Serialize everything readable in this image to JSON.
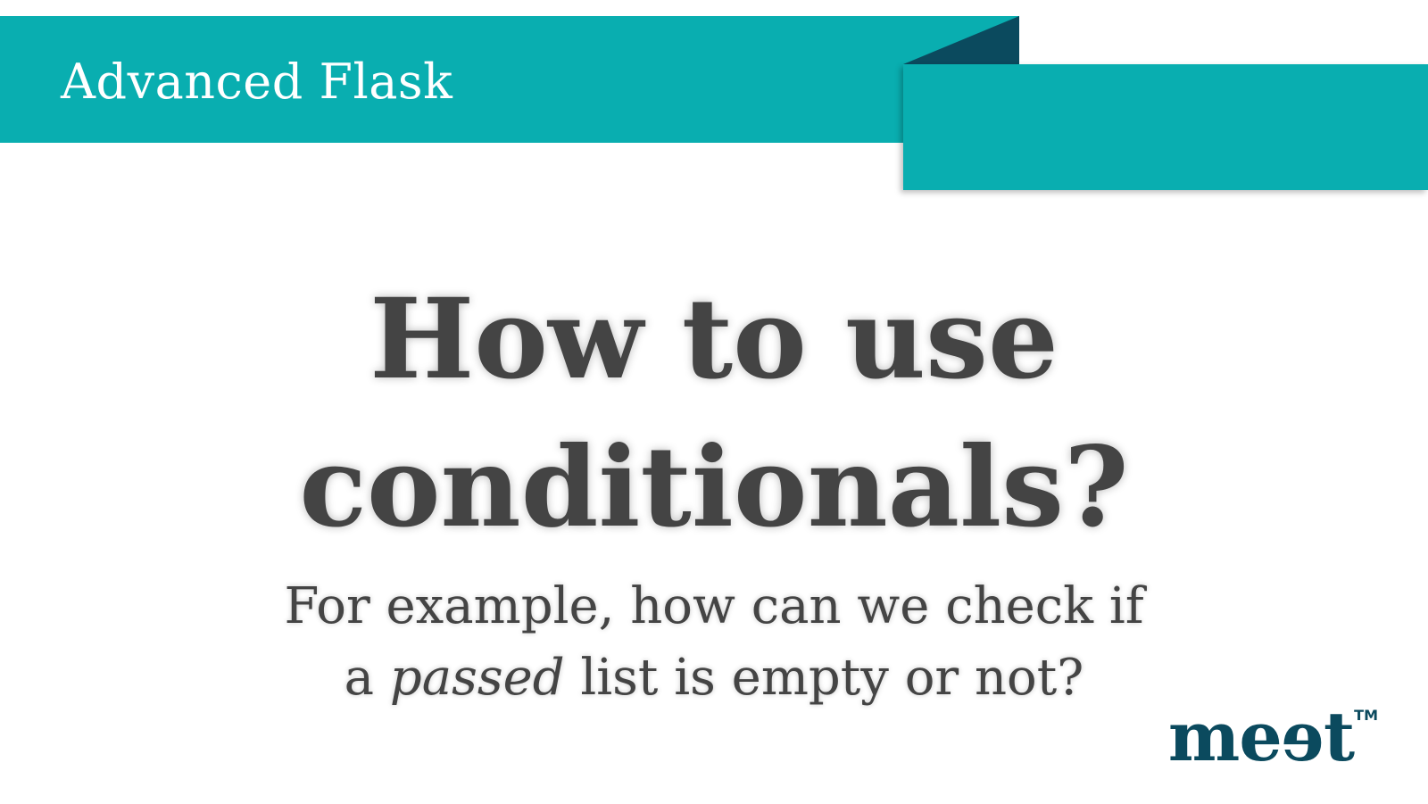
{
  "header": {
    "title": "Advanced Flask"
  },
  "slide": {
    "title_line1": "How to use",
    "title_line2": "conditionals?",
    "subtitle_line1": "For example, how can we check if",
    "subtitle_line2_prefix": "a ",
    "subtitle_line2_emphasis": "passed",
    "subtitle_line2_suffix": " list is empty or not?"
  },
  "logo": {
    "text": "meet",
    "trademark": "TM"
  },
  "colors": {
    "ribbon": "#09aeb0",
    "ribbon_fold": "#0b4a5e",
    "text": "#444444",
    "logo": "#0b4a5e"
  }
}
